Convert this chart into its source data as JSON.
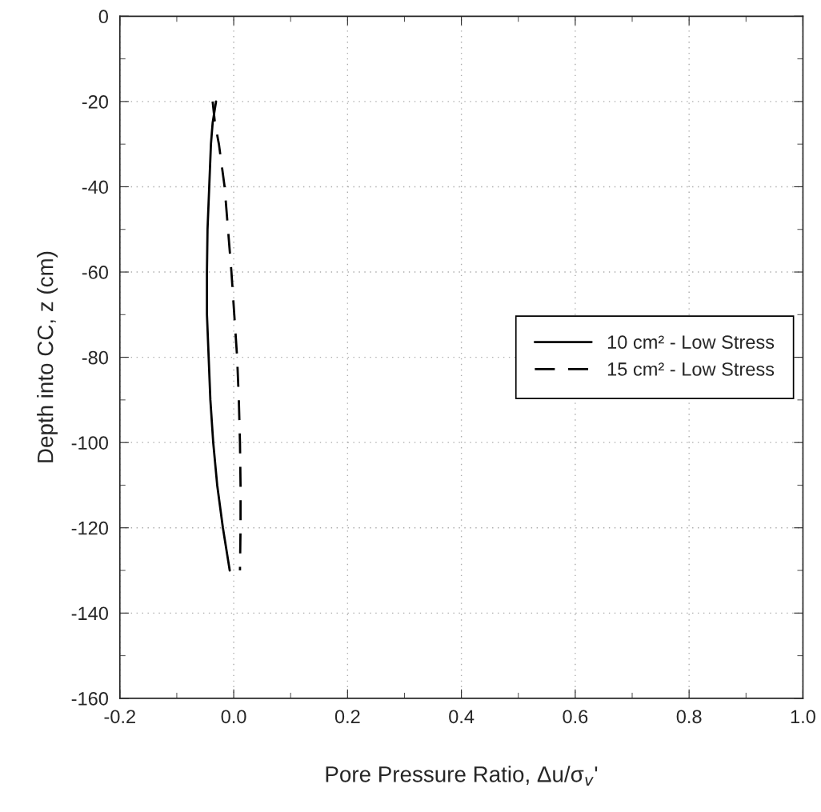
{
  "chart_data": {
    "type": "line",
    "xlabel": "Pore Pressure Ratio, Δu/σ$_{v}$'",
    "ylabel": "Depth into CC, z (cm)",
    "series": [
      {
        "name": "10 cm² - Low Stress",
        "color": "#000000",
        "line_style": "solid",
        "x": [
          -0.031,
          -0.037,
          -0.04,
          -0.043,
          -0.046,
          -0.047,
          -0.047,
          -0.044,
          -0.041,
          -0.036,
          -0.029,
          -0.019,
          -0.007
        ],
        "values": [
          -20,
          -25,
          -30,
          -40,
          -50,
          -60,
          -70,
          -80,
          -90,
          -100,
          -110,
          -120,
          -130
        ]
      },
      {
        "name": "15 cm² - Low Stress",
        "color": "#000000",
        "line_style": "dashed",
        "x": [
          -0.037,
          -0.033,
          -0.026,
          -0.016,
          -0.01,
          -0.004,
          0.001,
          0.006,
          0.009,
          0.011,
          0.012,
          0.012,
          0.011
        ],
        "values": [
          -20,
          -25,
          -30,
          -40,
          -50,
          -60,
          -70,
          -80,
          -90,
          -100,
          -110,
          -120,
          -130
        ]
      }
    ],
    "xlim": [
      -0.2,
      1.0
    ],
    "ylim": [
      -160,
      0
    ],
    "xticks": [
      {
        "value": -0.2,
        "label": "-0.2"
      },
      {
        "value": 0,
        "label": "0.0"
      },
      {
        "value": 0.2,
        "label": "0.2"
      },
      {
        "value": 0.4,
        "label": "0.4"
      },
      {
        "value": 0.6,
        "label": "0.6"
      },
      {
        "value": 0.8,
        "label": "0.8"
      },
      {
        "value": 1.0,
        "label": "1.0"
      }
    ],
    "yticks": [
      -160,
      -140,
      -120,
      -100,
      -80,
      -60,
      -40,
      -20,
      0
    ],
    "grid": true,
    "legend": "center right",
    "marker": "none"
  }
}
